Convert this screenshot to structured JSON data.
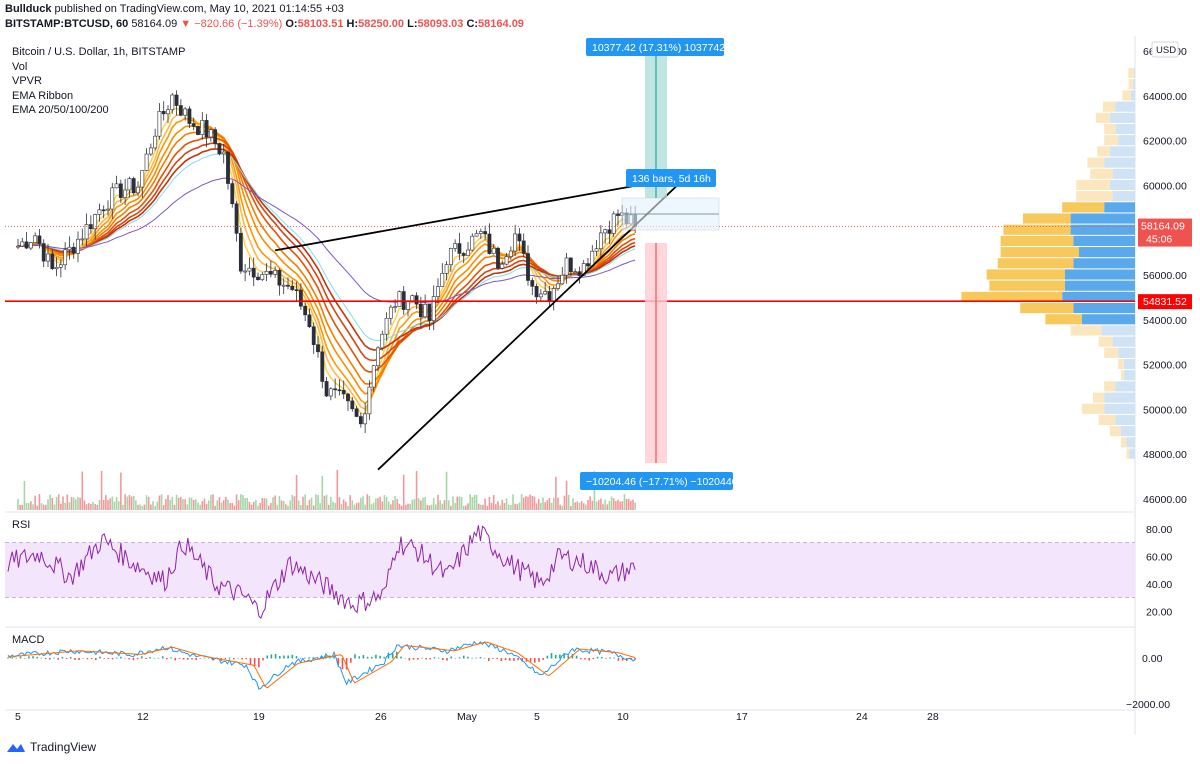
{
  "header": {
    "publisher": "Bullduck",
    "published_text": "published on TradingView.com, May 10, 2021 01:14:55 +03",
    "symbol_line": "BITSTAMP:BTCUSD, 60",
    "last": "58164.09",
    "change": "▼ −820.66 (−1.39%)",
    "o_label": "O:",
    "o": "58103.51",
    "h_label": "H:",
    "h": "58250.00",
    "l_label": "L:",
    "l": "58093.03",
    "c_label": "C:",
    "c": "58164.09"
  },
  "legend": {
    "title": "Bitcoin / U.S. Dollar, 1h, BITSTAMP",
    "indicators": [
      "Vol",
      "VPVR",
      "EMA Ribbon",
      "EMA 20/50/100/200"
    ]
  },
  "currency": "USD",
  "footer": {
    "brand": "TradingView"
  },
  "colors": {
    "up": "#26a69a",
    "down": "#ef5350",
    "candle": "#2a2e39",
    "support": "#ff0000",
    "rsi_line": "#8e24aa",
    "rsi_band": "#f3e5fc",
    "macd": "#2196f3",
    "signal": "#ff6d00",
    "accent": "#2196f3",
    "vp_blue": "#5aa9ea",
    "vp_yellow": "#f7c95c",
    "vp_blue_light": "#cfe3f5",
    "vp_yellow_light": "#fbe7bf"
  },
  "chart_data": [
    {
      "type": "candlestick",
      "title": "Bitcoin / U.S. Dollar, 1h, BITSTAMP",
      "y_axis": {
        "ticks": [
          46000,
          48000,
          50000,
          52000,
          54000,
          56000,
          58000,
          60000,
          62000,
          64000,
          66000
        ],
        "ylim": [
          45500,
          66500
        ]
      },
      "x_axis": {
        "ticks": [
          "5",
          "12",
          "19",
          "26",
          "May",
          "5",
          "10",
          "17",
          "24",
          "28"
        ]
      },
      "close_path": [
        [
          "Apr 5",
          57300
        ],
        [
          "Apr 6",
          57800
        ],
        [
          "Apr 7",
          56200
        ],
        [
          "Apr 8",
          57100
        ],
        [
          "Apr 9",
          58100
        ],
        [
          "Apr 10",
          59200
        ],
        [
          "Apr 11",
          59800
        ],
        [
          "Apr 12",
          60000
        ],
        [
          "Apr 13",
          62500
        ],
        [
          "Apr 14",
          64000
        ],
        [
          "Apr 15",
          62900
        ],
        [
          "Apr 16",
          62400
        ],
        [
          "Apr 17",
          61400
        ],
        [
          "Apr 18",
          56500
        ],
        [
          "Apr 19",
          56200
        ],
        [
          "Apr 20",
          55800
        ],
        [
          "Apr 21",
          55400
        ],
        [
          "Apr 22",
          53900
        ],
        [
          "Apr 23",
          50800
        ],
        [
          "Apr 24",
          50300
        ],
        [
          "Apr 25",
          49300
        ],
        [
          "Apr 26",
          53000
        ],
        [
          "Apr 27",
          54800
        ],
        [
          "Apr 28",
          55000
        ],
        [
          "Apr 29",
          54000
        ],
        [
          "Apr 30",
          56800
        ],
        [
          "May 1",
          57800
        ],
        [
          "May 2",
          56600
        ],
        [
          "May 3",
          57800
        ],
        [
          "May 4",
          55500
        ],
        [
          "May 5",
          55200
        ],
        [
          "May 6",
          56500
        ],
        [
          "May 7",
          56400
        ],
        [
          "May 8",
          57900
        ],
        [
          "May 9",
          58700
        ],
        [
          "May 10",
          58164.09
        ]
      ],
      "current_price": "58164.09",
      "countdown": "45:06",
      "support_level": "54831.52",
      "wedge_upper": [
        [
          "Apr 20",
          57100
        ],
        [
          "May 13",
          60400
        ]
      ],
      "wedge_lower": [
        [
          "Apr 26",
          47300
        ],
        [
          "May 13",
          60400
        ]
      ],
      "target_up_label": "10377.42 (17.31%) 1037742",
      "target_down_label": "−10204.46 (−17.71%) −1020446",
      "measure_label": "136 bars, 5d 16h",
      "volume_profile": [
        {
          "price": 65000,
          "buy": 200,
          "sell": 40
        },
        {
          "price": 64500,
          "buy": 150,
          "sell": 80
        },
        {
          "price": 64000,
          "buy": 300,
          "sell": 150
        },
        {
          "price": 63500,
          "buy": 450,
          "sell": 700
        },
        {
          "price": 63000,
          "buy": 500,
          "sell": 900
        },
        {
          "price": 62500,
          "buy": 400,
          "sell": 700
        },
        {
          "price": 62000,
          "buy": 500,
          "sell": 600
        },
        {
          "price": 61500,
          "buy": 450,
          "sell": 900
        },
        {
          "price": 61000,
          "buy": 600,
          "sell": 1100
        },
        {
          "price": 60500,
          "buy": 800,
          "sell": 800
        },
        {
          "price": 60000,
          "buy": 1200,
          "sell": 900
        },
        {
          "price": 59500,
          "buy": 1300,
          "sell": 800
        },
        {
          "price": 59000,
          "buy": 1500,
          "sell": 1100
        },
        {
          "price": 58500,
          "buy": 1700,
          "sell": 2300
        },
        {
          "price": 58000,
          "buy": 2400,
          "sell": 2300
        },
        {
          "price": 57500,
          "buy": 2600,
          "sell": 2200
        },
        {
          "price": 57000,
          "buy": 2800,
          "sell": 2000
        },
        {
          "price": 56500,
          "buy": 2700,
          "sell": 2200
        },
        {
          "price": 56000,
          "buy": 2800,
          "sell": 2500
        },
        {
          "price": 55500,
          "buy": 2700,
          "sell": 2500
        },
        {
          "price": 55000,
          "buy": 3600,
          "sell": 2600
        },
        {
          "price": 54500,
          "buy": 1900,
          "sell": 2200
        },
        {
          "price": 54000,
          "buy": 1300,
          "sell": 1900
        },
        {
          "price": 53500,
          "buy": 1100,
          "sell": 1200
        },
        {
          "price": 53000,
          "buy": 500,
          "sell": 800
        },
        {
          "price": 52500,
          "buy": 500,
          "sell": 600
        },
        {
          "price": 52000,
          "buy": 200,
          "sell": 400
        },
        {
          "price": 51500,
          "buy": 100,
          "sell": 400
        },
        {
          "price": 51000,
          "buy": 400,
          "sell": 700
        },
        {
          "price": 50500,
          "buy": 400,
          "sell": 1100
        },
        {
          "price": 50000,
          "buy": 800,
          "sell": 1100
        },
        {
          "price": 49500,
          "buy": 600,
          "sell": 700
        },
        {
          "price": 49000,
          "buy": 400,
          "sell": 500
        },
        {
          "price": 48500,
          "buy": 200,
          "sell": 300
        },
        {
          "price": 48000,
          "buy": 100,
          "sell": 200
        }
      ]
    },
    {
      "type": "line",
      "title": "RSI",
      "y_axis": {
        "ticks": [
          20.0,
          40.0,
          60.0,
          80.0
        ],
        "ylim": [
          10,
          90
        ]
      },
      "band": [
        30,
        70
      ],
      "waypoints": [
        [
          0,
          55
        ],
        [
          0.05,
          62
        ],
        [
          0.1,
          45
        ],
        [
          0.15,
          72
        ],
        [
          0.2,
          55
        ],
        [
          0.25,
          42
        ],
        [
          0.28,
          70
        ],
        [
          0.33,
          40
        ],
        [
          0.38,
          30
        ],
        [
          0.4,
          20
        ],
        [
          0.45,
          55
        ],
        [
          0.5,
          40
        ],
        [
          0.55,
          25
        ],
        [
          0.6,
          32
        ],
        [
          0.62,
          70
        ],
        [
          0.65,
          65
        ],
        [
          0.7,
          45
        ],
        [
          0.75,
          78
        ],
        [
          0.8,
          55
        ],
        [
          0.85,
          40
        ],
        [
          0.88,
          60
        ],
        [
          0.92,
          55
        ],
        [
          0.96,
          45
        ],
        [
          1.0,
          52
        ]
      ]
    },
    {
      "type": "line",
      "title": "MACD",
      "y_axis": {
        "ticks": [
          "0.00",
          "−2000.00"
        ]
      },
      "waypoints": [
        [
          0,
          100
        ],
        [
          0.1,
          400
        ],
        [
          0.2,
          200
        ],
        [
          0.25,
          600
        ],
        [
          0.3,
          100
        ],
        [
          0.38,
          -400
        ],
        [
          0.4,
          -1700
        ],
        [
          0.45,
          -300
        ],
        [
          0.52,
          200
        ],
        [
          0.54,
          -1400
        ],
        [
          0.6,
          -200
        ],
        [
          0.62,
          700
        ],
        [
          0.7,
          400
        ],
        [
          0.75,
          900
        ],
        [
          0.8,
          300
        ],
        [
          0.85,
          -1000
        ],
        [
          0.9,
          500
        ],
        [
          0.96,
          300
        ],
        [
          1.0,
          -100
        ]
      ]
    }
  ]
}
